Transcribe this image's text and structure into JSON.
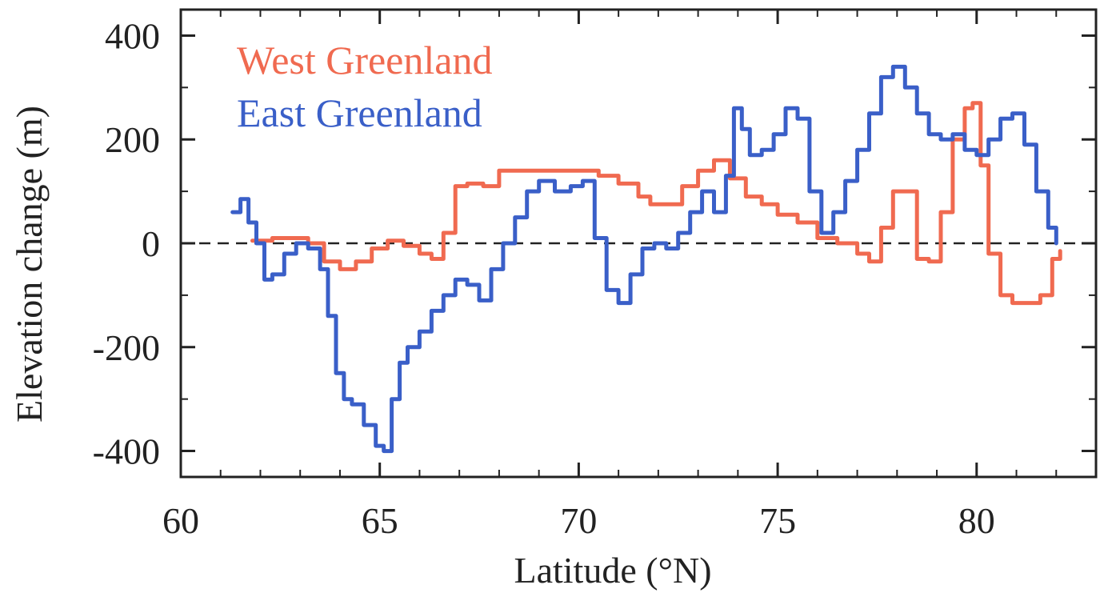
{
  "chart_data": {
    "type": "line",
    "title": "",
    "xlabel": "Latitude (°N)",
    "ylabel": "Elevation change (m)",
    "xlim": [
      60,
      83
    ],
    "ylim": [
      -450,
      450
    ],
    "xticks": [
      60,
      65,
      70,
      75,
      80
    ],
    "yticks": [
      -400,
      -200,
      0,
      200,
      400
    ],
    "xtick_labels": [
      "60",
      "65",
      "70",
      "75",
      "80"
    ],
    "ytick_labels": [
      "-400",
      "-200",
      "0",
      "200",
      "400"
    ],
    "zero_line": "dashed",
    "grid": false,
    "legend_position": "top-left",
    "series": [
      {
        "name": "West Greenland",
        "color": "#f06a50",
        "x": [
          61.8,
          62.3,
          62.8,
          63.2,
          63.6,
          64.0,
          64.4,
          64.8,
          65.2,
          65.6,
          66.0,
          66.3,
          66.6,
          66.9,
          67.2,
          67.6,
          68.0,
          68.5,
          69.0,
          69.5,
          70.0,
          70.5,
          71.0,
          71.5,
          71.8,
          72.2,
          72.6,
          73.0,
          73.4,
          73.8,
          74.2,
          74.6,
          75.0,
          75.5,
          76.0,
          76.5,
          77.0,
          77.3,
          77.6,
          77.9,
          78.2,
          78.5,
          78.8,
          79.1,
          79.4,
          79.7,
          79.9,
          80.1,
          80.3,
          80.6,
          80.9,
          81.2,
          81.6,
          81.9,
          82.1
        ],
        "y": [
          5,
          10,
          10,
          0,
          -35,
          -50,
          -35,
          -10,
          5,
          -5,
          -20,
          -30,
          20,
          110,
          115,
          110,
          140,
          140,
          140,
          140,
          140,
          130,
          115,
          90,
          75,
          75,
          110,
          140,
          160,
          125,
          90,
          75,
          55,
          40,
          10,
          0,
          -20,
          -35,
          30,
          100,
          100,
          -30,
          -35,
          60,
          200,
          260,
          270,
          150,
          -20,
          -100,
          -115,
          -115,
          -100,
          -30,
          -15
        ]
      },
      {
        "name": "East Greenland",
        "color": "#3a5fc8",
        "x": [
          61.3,
          61.5,
          61.7,
          61.9,
          62.1,
          62.3,
          62.6,
          62.9,
          63.2,
          63.5,
          63.7,
          63.9,
          64.1,
          64.3,
          64.6,
          64.9,
          65.1,
          65.3,
          65.5,
          65.7,
          66.0,
          66.3,
          66.6,
          66.9,
          67.2,
          67.5,
          67.8,
          68.1,
          68.4,
          68.7,
          69.0,
          69.4,
          69.8,
          70.1,
          70.4,
          70.7,
          71.0,
          71.3,
          71.6,
          71.9,
          72.2,
          72.5,
          72.8,
          73.1,
          73.4,
          73.7,
          73.9,
          74.1,
          74.3,
          74.6,
          74.9,
          75.2,
          75.5,
          75.8,
          76.1,
          76.4,
          76.7,
          77.0,
          77.3,
          77.6,
          77.9,
          78.2,
          78.5,
          78.8,
          79.1,
          79.4,
          79.7,
          80.0,
          80.3,
          80.6,
          80.9,
          81.2,
          81.5,
          81.8,
          82.0
        ],
        "y": [
          60,
          85,
          40,
          0,
          -70,
          -60,
          -20,
          0,
          -10,
          -50,
          -140,
          -250,
          -300,
          -310,
          -350,
          -390,
          -400,
          -300,
          -230,
          -200,
          -170,
          -130,
          -100,
          -70,
          -80,
          -110,
          -50,
          0,
          50,
          100,
          120,
          100,
          110,
          120,
          10,
          -90,
          -115,
          -60,
          -10,
          0,
          -10,
          20,
          60,
          100,
          60,
          130,
          260,
          220,
          170,
          180,
          210,
          260,
          240,
          100,
          20,
          60,
          120,
          180,
          250,
          320,
          340,
          300,
          250,
          210,
          200,
          210,
          180,
          170,
          200,
          240,
          250,
          190,
          100,
          30,
          0
        ]
      }
    ]
  }
}
